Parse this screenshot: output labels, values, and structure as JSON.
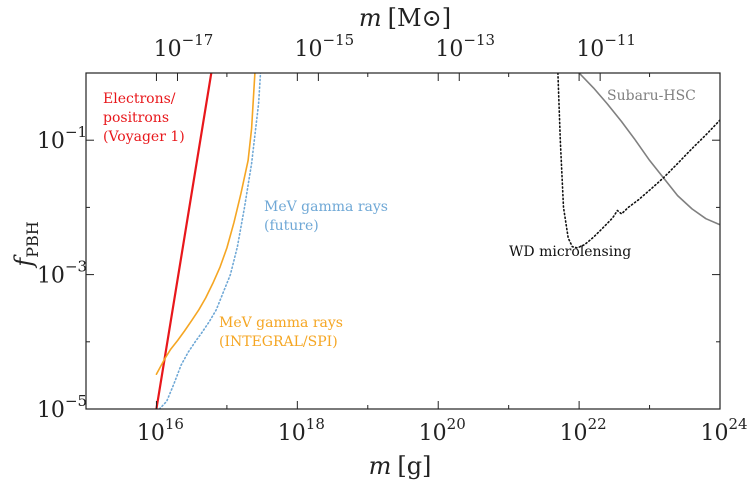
{
  "chart_data": {
    "type": "line",
    "title": "",
    "xlabel": "m [g]",
    "xlabel_var": "m",
    "xlabel_unit": "[g]",
    "x2label": "m [M⊙]",
    "x2label_var": "m",
    "x2label_unit": "[M⊙]",
    "ylabel": "f_PBH",
    "ylabel_main": "f",
    "ylabel_sub": "PBH",
    "xscale": "log",
    "yscale": "log",
    "xlim": [
      1000000000000000.0,
      1e+24
    ],
    "ylim": [
      1e-05,
      1
    ],
    "grid": false,
    "x_ticks": [
      {
        "value": 1e+16,
        "base": "10",
        "exp": "16"
      },
      {
        "value": 1e+18,
        "base": "10",
        "exp": "18"
      },
      {
        "value": 1e+20,
        "base": "10",
        "exp": "20"
      },
      {
        "value": 1e+22,
        "base": "10",
        "exp": "22"
      },
      {
        "value": 1e+24,
        "base": "10",
        "exp": "24"
      }
    ],
    "x2_ticks": [
      {
        "value": 1.989e+16,
        "base": "10",
        "exp": "−17"
      },
      {
        "value": 1.989e+18,
        "base": "10",
        "exp": "−15"
      },
      {
        "value": 1.989e+20,
        "base": "10",
        "exp": "−13"
      },
      {
        "value": 1.989e+22,
        "base": "10",
        "exp": "−11"
      }
    ],
    "y_ticks": [
      {
        "value": 0.1,
        "base": "10",
        "exp": "−1"
      },
      {
        "value": 0.001,
        "base": "10",
        "exp": "−3"
      },
      {
        "value": 1e-05,
        "base": "10",
        "exp": "−5"
      }
    ],
    "series": [
      {
        "name": "Electrons/positrons (Voyager 1)",
        "color": "#e8171b",
        "style": "solid",
        "x": [
          1e+16,
          6e+16
        ],
        "y": [
          1e-05,
          1.0
        ]
      },
      {
        "name": "MeV gamma rays (INTEGRAL/SPI)",
        "color": "#f5a623",
        "style": "solid",
        "x": [
          1e+16,
          1.3e+16,
          1.6e+16,
          2e+16,
          2.5e+16,
          3.2e+16,
          4e+16,
          5e+16,
          6.3e+16,
          8e+16,
          1e+17,
          1.26e+17,
          1.58e+17,
          2e+17,
          2.24e+17,
          2.4e+17,
          2.5e+17
        ],
        "y": [
          3.3e-05,
          5.5e-05,
          7.8e-05,
          0.000105,
          0.000145,
          0.00021,
          0.0003,
          0.00045,
          0.00074,
          0.0013,
          0.0025,
          0.006,
          0.016,
          0.05,
          0.15,
          0.5,
          1.0
        ]
      },
      {
        "name": "MeV gamma rays (future)",
        "color": "#6fa8d6",
        "style": "dotted",
        "x": [
          1.1e+16,
          1.4e+16,
          1.78e+16,
          2.24e+16,
          2.82e+16,
          3.55e+16,
          4.47e+16,
          5.62e+16,
          7.08e+16,
          8.91e+16,
          1.12e+17,
          1.41e+17,
          1.78e+17,
          2.24e+17,
          2.82e+17,
          3e+17
        ],
        "y": [
          1e-05,
          1.3e-05,
          2.4e-05,
          4.5e-05,
          7e-05,
          0.0001,
          0.00014,
          0.0002,
          0.0003,
          0.00055,
          0.001,
          0.0026,
          0.01,
          0.045,
          0.35,
          1.0
        ]
      },
      {
        "name": "Subaru-HSC",
        "color": "#808080",
        "style": "solid",
        "x": [
          1e+22,
          1.6e+22,
          2.5e+22,
          4e+22,
          6.3e+22,
          1e+23,
          1.6e+23,
          2.5e+23,
          4e+23,
          6.3e+23,
          1e+24
        ],
        "y": [
          1.0,
          0.6,
          0.35,
          0.19,
          0.1,
          0.05,
          0.027,
          0.015,
          0.0095,
          0.0068,
          0.0055
        ]
      },
      {
        "name": "WD microlensing",
        "color": "#111111",
        "style": "dotted",
        "x": [
          5e+21,
          5.4e+21,
          6e+21,
          7e+21,
          8e+21,
          9.5e+21,
          1.2e+22,
          1.6e+22,
          2.2e+22,
          3e+22,
          3.5e+22,
          4e+22,
          5e+22,
          7e+22,
          1e+23,
          1.6e+23,
          2.5e+23,
          4e+23,
          6.3e+23,
          1e+24
        ],
        "y": [
          1.0,
          0.1,
          0.01,
          0.0035,
          0.0026,
          0.0025,
          0.0028,
          0.0036,
          0.005,
          0.007,
          0.009,
          0.008,
          0.01,
          0.013,
          0.018,
          0.028,
          0.045,
          0.075,
          0.12,
          0.2
        ]
      }
    ],
    "annotations": [
      {
        "name": "electrons",
        "color": "#e8171b",
        "lines": [
          "Electrons/",
          "positrons",
          "(Voyager 1)"
        ]
      },
      {
        "name": "integral",
        "color": "#f5a623",
        "lines": [
          "MeV gamma rays",
          "(INTEGRAL/SPI)"
        ]
      },
      {
        "name": "future",
        "color": "#6fa8d6",
        "lines": [
          "MeV gamma rays",
          "(future)"
        ]
      },
      {
        "name": "subaru",
        "color": "#808080",
        "lines": [
          "Subaru-HSC"
        ]
      },
      {
        "name": "wd",
        "color": "#111111",
        "lines": [
          "WD microlensing"
        ]
      }
    ]
  }
}
